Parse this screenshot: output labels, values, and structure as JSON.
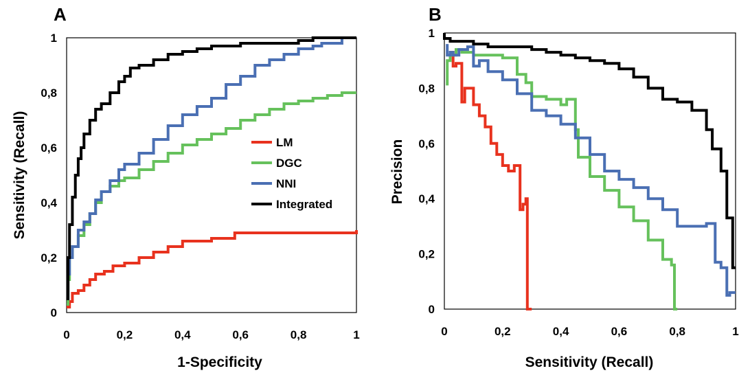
{
  "chart_data": [
    {
      "type": "line",
      "panel": "A",
      "xlabel": "1-Specificity",
      "ylabel": "Sensitivity (Recall)",
      "xlim": [
        0,
        1
      ],
      "ylim": [
        0,
        1
      ],
      "x_ticks": [
        "0",
        "0,2",
        "0,4",
        "0,6",
        "0,8",
        "1"
      ],
      "y_ticks": [
        "0",
        "0,2",
        "0,4",
        "0,6",
        "0,8",
        "1"
      ],
      "grid": false,
      "legend_position": "center-right",
      "series": [
        {
          "name": "LM",
          "color": "#e8321e",
          "x": [
            0,
            0.01,
            0.02,
            0.04,
            0.06,
            0.08,
            0.1,
            0.13,
            0.16,
            0.2,
            0.25,
            0.3,
            0.35,
            0.4,
            0.45,
            0.5,
            0.55,
            0.58,
            0.65,
            0.75,
            0.85,
            0.95,
            0.99,
            1.0
          ],
          "y": [
            0.02,
            0.04,
            0.07,
            0.08,
            0.1,
            0.12,
            0.14,
            0.15,
            0.17,
            0.18,
            0.2,
            0.22,
            0.24,
            0.26,
            0.26,
            0.27,
            0.27,
            0.29,
            0.29,
            0.29,
            0.29,
            0.29,
            0.29,
            0.3
          ]
        },
        {
          "name": "DGC",
          "color": "#66c15c",
          "x": [
            0,
            0.005,
            0.01,
            0.02,
            0.04,
            0.06,
            0.08,
            0.1,
            0.12,
            0.15,
            0.18,
            0.2,
            0.25,
            0.3,
            0.35,
            0.4,
            0.45,
            0.5,
            0.55,
            0.6,
            0.65,
            0.7,
            0.75,
            0.8,
            0.85,
            0.9,
            0.95,
            1.0
          ],
          "y": [
            0.03,
            0.12,
            0.2,
            0.24,
            0.28,
            0.32,
            0.36,
            0.4,
            0.44,
            0.46,
            0.48,
            0.49,
            0.52,
            0.55,
            0.58,
            0.61,
            0.63,
            0.65,
            0.67,
            0.7,
            0.72,
            0.74,
            0.76,
            0.77,
            0.78,
            0.79,
            0.8,
            0.8
          ]
        },
        {
          "name": "NNI",
          "color": "#4a6fb3",
          "x": [
            0,
            0.005,
            0.01,
            0.02,
            0.04,
            0.06,
            0.08,
            0.1,
            0.12,
            0.15,
            0.18,
            0.2,
            0.25,
            0.3,
            0.35,
            0.4,
            0.45,
            0.5,
            0.55,
            0.6,
            0.65,
            0.7,
            0.75,
            0.8,
            0.85,
            0.88,
            0.92,
            0.95
          ],
          "y": [
            0.05,
            0.14,
            0.2,
            0.24,
            0.3,
            0.33,
            0.36,
            0.41,
            0.44,
            0.48,
            0.52,
            0.54,
            0.58,
            0.63,
            0.68,
            0.72,
            0.75,
            0.78,
            0.83,
            0.86,
            0.9,
            0.92,
            0.94,
            0.96,
            0.97,
            0.98,
            0.98,
            1.0
          ]
        },
        {
          "name": "Integrated",
          "color": "#000000",
          "x": [
            0,
            0.005,
            0.01,
            0.02,
            0.03,
            0.04,
            0.05,
            0.06,
            0.08,
            0.1,
            0.12,
            0.15,
            0.18,
            0.2,
            0.22,
            0.25,
            0.3,
            0.35,
            0.4,
            0.45,
            0.5,
            0.6,
            0.7,
            0.8,
            0.85,
            0.9,
            1.0
          ],
          "y": [
            0.05,
            0.2,
            0.32,
            0.42,
            0.5,
            0.56,
            0.6,
            0.65,
            0.7,
            0.74,
            0.76,
            0.8,
            0.84,
            0.86,
            0.89,
            0.9,
            0.92,
            0.94,
            0.95,
            0.96,
            0.97,
            0.98,
            0.98,
            0.99,
            1.0,
            1.0,
            1.0
          ]
        }
      ]
    },
    {
      "type": "line",
      "panel": "B",
      "xlabel": "Sensitivity (Recall)",
      "ylabel": "Precision",
      "xlim": [
        0,
        1
      ],
      "ylim": [
        0,
        1
      ],
      "x_ticks": [
        "0",
        "0,2",
        "0,4",
        "0,6",
        "0,8",
        "1"
      ],
      "y_ticks": [
        "0",
        "0,2",
        "0,4",
        "0,6",
        "0,8",
        "1"
      ],
      "grid": false,
      "series": [
        {
          "name": "LM",
          "color": "#e8321e",
          "x": [
            0.02,
            0.03,
            0.04,
            0.06,
            0.07,
            0.1,
            0.12,
            0.14,
            0.16,
            0.18,
            0.2,
            0.22,
            0.24,
            0.26,
            0.27,
            0.28,
            0.285,
            0.29,
            0.3
          ],
          "y": [
            0.92,
            0.93,
            0.88,
            0.89,
            0.75,
            0.8,
            0.74,
            0.7,
            0.66,
            0.6,
            0.56,
            0.52,
            0.5,
            0.52,
            0.36,
            0.38,
            0.4,
            0.0,
            0.0
          ]
        },
        {
          "name": "DGC",
          "color": "#66c15c",
          "x": [
            0.01,
            0.02,
            0.04,
            0.06,
            0.1,
            0.15,
            0.2,
            0.25,
            0.28,
            0.3,
            0.35,
            0.4,
            0.42,
            0.45,
            0.46,
            0.5,
            0.55,
            0.6,
            0.65,
            0.7,
            0.75,
            0.78,
            0.79,
            0.8
          ],
          "y": [
            0.81,
            0.9,
            0.92,
            0.94,
            0.93,
            0.92,
            0.92,
            0.91,
            0.85,
            0.82,
            0.77,
            0.76,
            0.74,
            0.76,
            0.65,
            0.55,
            0.48,
            0.43,
            0.37,
            0.32,
            0.25,
            0.18,
            0.16,
            0.0
          ]
        },
        {
          "name": "NNI",
          "color": "#4a6fb3",
          "x": [
            0.01,
            0.02,
            0.03,
            0.05,
            0.08,
            0.1,
            0.12,
            0.15,
            0.2,
            0.25,
            0.3,
            0.35,
            0.4,
            0.45,
            0.5,
            0.55,
            0.6,
            0.65,
            0.7,
            0.75,
            0.8,
            0.85,
            0.9,
            0.93,
            0.95,
            0.97,
            0.98,
            1.0
          ],
          "y": [
            0.96,
            0.92,
            0.93,
            0.92,
            0.94,
            0.95,
            0.88,
            0.9,
            0.86,
            0.83,
            0.78,
            0.72,
            0.7,
            0.67,
            0.62,
            0.56,
            0.5,
            0.47,
            0.44,
            0.4,
            0.36,
            0.3,
            0.3,
            0.31,
            0.17,
            0.15,
            0.05,
            0.06
          ]
        },
        {
          "name": "Integrated",
          "color": "#000000",
          "x": [
            0.0,
            0.02,
            0.05,
            0.1,
            0.15,
            0.2,
            0.25,
            0.3,
            0.35,
            0.4,
            0.45,
            0.5,
            0.55,
            0.6,
            0.65,
            0.7,
            0.75,
            0.8,
            0.85,
            0.9,
            0.92,
            0.95,
            0.97,
            0.99,
            1.0
          ],
          "y": [
            1.0,
            0.98,
            0.97,
            0.97,
            0.96,
            0.95,
            0.95,
            0.95,
            0.94,
            0.93,
            0.92,
            0.91,
            0.9,
            0.89,
            0.87,
            0.84,
            0.8,
            0.76,
            0.75,
            0.72,
            0.65,
            0.58,
            0.5,
            0.33,
            0.15
          ]
        }
      ]
    }
  ]
}
